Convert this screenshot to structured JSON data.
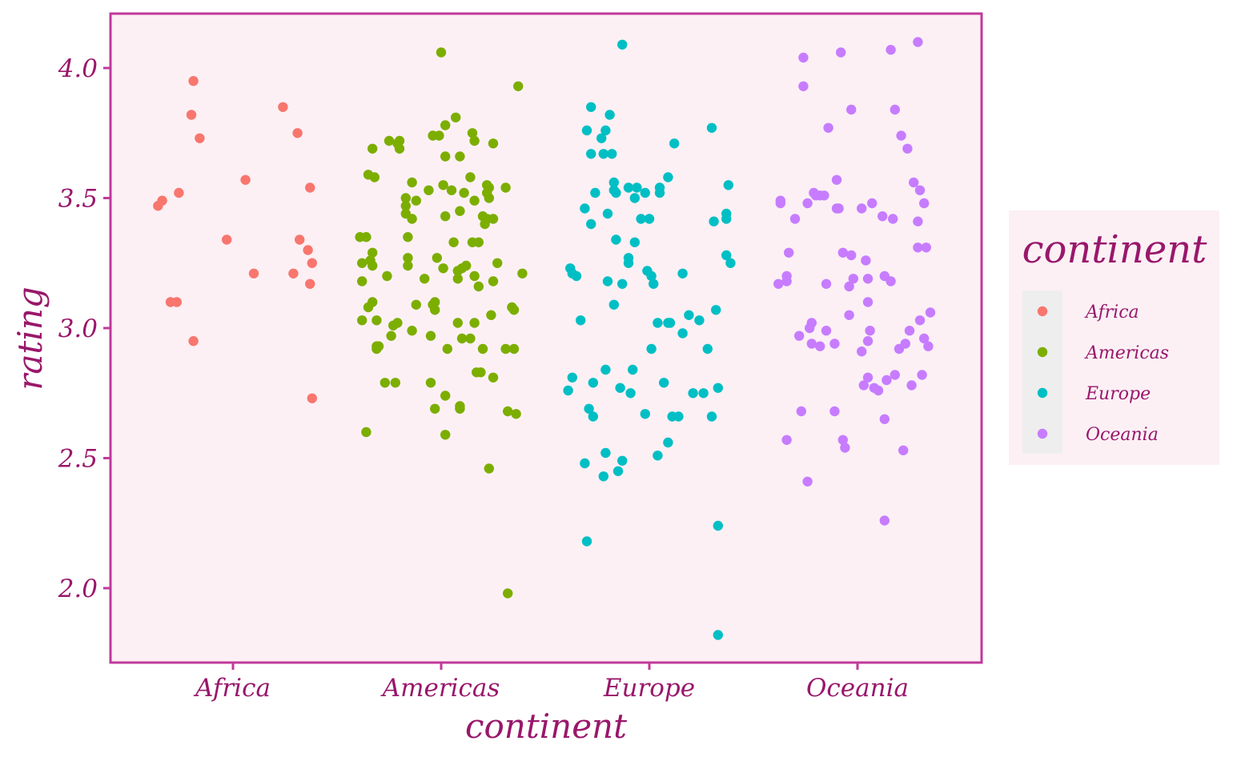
{
  "chart_data": {
    "type": "scatter",
    "xlabel": "continent",
    "ylabel": "rating",
    "categories": [
      "Africa",
      "Americas",
      "Europe",
      "Oceania"
    ],
    "ylim": [
      1.72,
      4.22
    ],
    "yticks": [
      "2.0",
      "2.5",
      "3.0",
      "3.5",
      "4.0"
    ],
    "ytick_values": [
      2.0,
      2.5,
      3.0,
      3.5,
      4.0
    ],
    "grid": false,
    "legend": {
      "title": "continent",
      "position": "right"
    },
    "colors": {
      "panel_background": "#fcf0f5",
      "panel_border": "#c0399b",
      "text": "#99176b",
      "legend_key_background": "#eeeeee"
    },
    "series": [
      {
        "name": "Africa",
        "color": "#f8766d",
        "points": [
          [
            -0.36,
            3.47
          ],
          [
            -0.34,
            3.49
          ],
          [
            -0.3,
            3.1
          ],
          [
            -0.27,
            3.1
          ],
          [
            -0.26,
            3.52
          ],
          [
            -0.2,
            3.82
          ],
          [
            -0.19,
            2.95
          ],
          [
            -0.19,
            3.95
          ],
          [
            -0.16,
            3.73
          ],
          [
            -0.03,
            3.34
          ],
          [
            0.06,
            3.57
          ],
          [
            0.1,
            3.21
          ],
          [
            0.24,
            3.85
          ],
          [
            0.29,
            3.21
          ],
          [
            0.31,
            3.75
          ],
          [
            0.32,
            3.34
          ],
          [
            0.36,
            3.3
          ],
          [
            0.37,
            3.54
          ],
          [
            0.37,
            3.17
          ],
          [
            0.38,
            3.25
          ],
          [
            0.38,
            2.73
          ]
        ]
      },
      {
        "name": "Americas",
        "color": "#7cae00",
        "points": [
          [
            -0.39,
            3.35
          ],
          [
            -0.38,
            3.25
          ],
          [
            -0.38,
            3.18
          ],
          [
            -0.38,
            3.03
          ],
          [
            -0.36,
            3.35
          ],
          [
            -0.36,
            2.6
          ],
          [
            -0.35,
            3.59
          ],
          [
            -0.35,
            3.08
          ],
          [
            -0.34,
            3.26
          ],
          [
            -0.33,
            3.24
          ],
          [
            -0.33,
            3.29
          ],
          [
            -0.33,
            3.1
          ],
          [
            -0.33,
            3.69
          ],
          [
            -0.32,
            3.58
          ],
          [
            -0.31,
            2.93
          ],
          [
            -0.31,
            2.92
          ],
          [
            -0.31,
            3.03
          ],
          [
            -0.3,
            2.93
          ],
          [
            -0.27,
            2.79
          ],
          [
            -0.26,
            3.2
          ],
          [
            -0.25,
            3.72
          ],
          [
            -0.24,
            2.97
          ],
          [
            -0.23,
            3.01
          ],
          [
            -0.22,
            2.79
          ],
          [
            -0.21,
            3.71
          ],
          [
            -0.21,
            3.02
          ],
          [
            -0.2,
            3.72
          ],
          [
            -0.2,
            3.69
          ],
          [
            -0.17,
            3.44
          ],
          [
            -0.17,
            3.47
          ],
          [
            -0.17,
            3.5
          ],
          [
            -0.16,
            3.35
          ],
          [
            -0.16,
            3.27
          ],
          [
            -0.16,
            3.24
          ],
          [
            -0.14,
            3.42
          ],
          [
            -0.14,
            3.56
          ],
          [
            -0.14,
            2.99
          ],
          [
            -0.12,
            3.09
          ],
          [
            -0.12,
            3.49
          ],
          [
            -0.08,
            3.19
          ],
          [
            -0.06,
            3.53
          ],
          [
            -0.05,
            2.79
          ],
          [
            -0.05,
            2.97
          ],
          [
            -0.04,
            3.74
          ],
          [
            -0.04,
            3.09
          ],
          [
            -0.03,
            3.1
          ],
          [
            -0.03,
            3.07
          ],
          [
            -0.03,
            2.69
          ],
          [
            -0.02,
            3.27
          ],
          [
            -0.01,
            3.74
          ],
          [
            0.0,
            4.06
          ],
          [
            0.01,
            3.55
          ],
          [
            0.01,
            3.23
          ],
          [
            0.02,
            3.43
          ],
          [
            0.02,
            3.66
          ],
          [
            0.02,
            3.78
          ],
          [
            0.02,
            2.74
          ],
          [
            0.02,
            2.59
          ],
          [
            0.03,
            2.92
          ],
          [
            0.05,
            3.53
          ],
          [
            0.06,
            3.33
          ],
          [
            0.07,
            3.81
          ],
          [
            0.08,
            3.19
          ],
          [
            0.08,
            3.02
          ],
          [
            0.08,
            3.22
          ],
          [
            0.09,
            2.69
          ],
          [
            0.09,
            2.7
          ],
          [
            0.09,
            3.66
          ],
          [
            0.09,
            3.45
          ],
          [
            0.1,
            3.23
          ],
          [
            0.1,
            2.96
          ],
          [
            0.11,
            3.52
          ],
          [
            0.12,
            3.24
          ],
          [
            0.14,
            3.58
          ],
          [
            0.14,
            2.96
          ],
          [
            0.15,
            3.33
          ],
          [
            0.15,
            3.75
          ],
          [
            0.16,
            3.49
          ],
          [
            0.16,
            3.2
          ],
          [
            0.16,
            3.02
          ],
          [
            0.16,
            3.72
          ],
          [
            0.17,
            2.83
          ],
          [
            0.18,
            3.33
          ],
          [
            0.18,
            3.16
          ],
          [
            0.19,
            2.83
          ],
          [
            0.2,
            2.92
          ],
          [
            0.2,
            3.43
          ],
          [
            0.21,
            3.4
          ],
          [
            0.22,
            3.55
          ],
          [
            0.22,
            3.42
          ],
          [
            0.22,
            3.52
          ],
          [
            0.23,
            3.5
          ],
          [
            0.23,
            3.54
          ],
          [
            0.23,
            2.46
          ],
          [
            0.24,
            3.05
          ],
          [
            0.25,
            2.81
          ],
          [
            0.25,
            3.42
          ],
          [
            0.25,
            3.18
          ],
          [
            0.25,
            3.71
          ],
          [
            0.27,
            3.25
          ],
          [
            0.31,
            3.54
          ],
          [
            0.31,
            2.92
          ],
          [
            0.32,
            2.68
          ],
          [
            0.32,
            1.98
          ],
          [
            0.34,
            3.08
          ],
          [
            0.35,
            3.07
          ],
          [
            0.35,
            2.92
          ],
          [
            0.36,
            2.67
          ],
          [
            0.37,
            3.93
          ],
          [
            0.39,
            3.21
          ]
        ]
      },
      {
        "name": "Europe",
        "color": "#00bfc4",
        "points": [
          [
            -0.39,
            2.76
          ],
          [
            -0.38,
            3.23
          ],
          [
            -0.37,
            2.81
          ],
          [
            -0.37,
            3.21
          ],
          [
            -0.35,
            3.2
          ],
          [
            -0.33,
            3.03
          ],
          [
            -0.31,
            3.46
          ],
          [
            -0.31,
            2.48
          ],
          [
            -0.3,
            3.76
          ],
          [
            -0.3,
            2.18
          ],
          [
            -0.29,
            2.69
          ],
          [
            -0.28,
            3.85
          ],
          [
            -0.28,
            3.67
          ],
          [
            -0.28,
            3.4
          ],
          [
            -0.27,
            2.66
          ],
          [
            -0.27,
            2.79
          ],
          [
            -0.26,
            3.52
          ],
          [
            -0.23,
            3.73
          ],
          [
            -0.22,
            3.67
          ],
          [
            -0.22,
            2.43
          ],
          [
            -0.21,
            3.76
          ],
          [
            -0.21,
            2.84
          ],
          [
            -0.21,
            2.52
          ],
          [
            -0.2,
            3.18
          ],
          [
            -0.2,
            3.44
          ],
          [
            -0.19,
            3.82
          ],
          [
            -0.18,
            3.67
          ],
          [
            -0.17,
            3.56
          ],
          [
            -0.17,
            3.53
          ],
          [
            -0.17,
            3.09
          ],
          [
            -0.16,
            3.34
          ],
          [
            -0.16,
            3.52
          ],
          [
            -0.15,
            2.45
          ],
          [
            -0.14,
            2.77
          ],
          [
            -0.13,
            2.49
          ],
          [
            -0.13,
            3.17
          ],
          [
            -0.13,
            4.09
          ],
          [
            -0.1,
            3.25
          ],
          [
            -0.1,
            3.27
          ],
          [
            -0.1,
            3.54
          ],
          [
            -0.09,
            2.75
          ],
          [
            -0.08,
            2.84
          ],
          [
            -0.07,
            3.5
          ],
          [
            -0.07,
            3.33
          ],
          [
            -0.06,
            3.54
          ],
          [
            -0.04,
            3.42
          ],
          [
            -0.02,
            3.52
          ],
          [
            -0.02,
            2.67
          ],
          [
            -0.01,
            3.22
          ],
          [
            0.0,
            3.42
          ],
          [
            0.01,
            3.2
          ],
          [
            0.01,
            2.92
          ],
          [
            0.02,
            3.17
          ],
          [
            0.04,
            3.02
          ],
          [
            0.04,
            2.51
          ],
          [
            0.05,
            3.54
          ],
          [
            0.05,
            3.52
          ],
          [
            0.07,
            2.79
          ],
          [
            0.09,
            2.56
          ],
          [
            0.09,
            3.58
          ],
          [
            0.09,
            3.02
          ],
          [
            0.1,
            3.02
          ],
          [
            0.11,
            2.66
          ],
          [
            0.12,
            3.71
          ],
          [
            0.14,
            2.66
          ],
          [
            0.16,
            3.21
          ],
          [
            0.16,
            2.98
          ],
          [
            0.19,
            3.05
          ],
          [
            0.21,
            2.75
          ],
          [
            0.24,
            3.03
          ],
          [
            0.26,
            2.75
          ],
          [
            0.28,
            2.92
          ],
          [
            0.3,
            2.66
          ],
          [
            0.3,
            3.77
          ],
          [
            0.31,
            3.41
          ],
          [
            0.32,
            3.07
          ],
          [
            0.33,
            2.77
          ],
          [
            0.33,
            1.82
          ],
          [
            0.33,
            2.24
          ],
          [
            0.37,
            3.28
          ],
          [
            0.37,
            3.42
          ],
          [
            0.37,
            3.44
          ],
          [
            0.38,
            3.55
          ],
          [
            0.39,
            3.25
          ]
        ]
      },
      {
        "name": "Oceania",
        "color": "#c77cff",
        "points": [
          [
            -0.38,
            3.17
          ],
          [
            -0.37,
            3.48
          ],
          [
            -0.37,
            3.49
          ],
          [
            -0.34,
            2.57
          ],
          [
            -0.34,
            3.2
          ],
          [
            -0.34,
            3.18
          ],
          [
            -0.33,
            3.29
          ],
          [
            -0.3,
            3.42
          ],
          [
            -0.28,
            2.97
          ],
          [
            -0.27,
            2.68
          ],
          [
            -0.26,
            3.93
          ],
          [
            -0.26,
            4.04
          ],
          [
            -0.24,
            2.41
          ],
          [
            -0.24,
            3.48
          ],
          [
            -0.23,
            3.0
          ],
          [
            -0.22,
            2.94
          ],
          [
            -0.22,
            3.02
          ],
          [
            -0.21,
            3.52
          ],
          [
            -0.2,
            3.51
          ],
          [
            -0.18,
            3.51
          ],
          [
            -0.18,
            2.93
          ],
          [
            -0.16,
            3.51
          ],
          [
            -0.15,
            3.17
          ],
          [
            -0.15,
            2.99
          ],
          [
            -0.14,
            3.77
          ],
          [
            -0.11,
            2.94
          ],
          [
            -0.11,
            2.68
          ],
          [
            -0.1,
            3.57
          ],
          [
            -0.1,
            3.46
          ],
          [
            -0.09,
            3.46
          ],
          [
            -0.08,
            4.06
          ],
          [
            -0.07,
            3.29
          ],
          [
            -0.07,
            2.57
          ],
          [
            -0.06,
            2.54
          ],
          [
            -0.04,
            3.16
          ],
          [
            -0.04,
            3.05
          ],
          [
            -0.03,
            3.28
          ],
          [
            -0.03,
            3.84
          ],
          [
            -0.02,
            3.19
          ],
          [
            0.02,
            2.91
          ],
          [
            0.02,
            3.46
          ],
          [
            0.03,
            2.78
          ],
          [
            0.04,
            3.26
          ],
          [
            0.05,
            3.1
          ],
          [
            0.05,
            2.81
          ],
          [
            0.05,
            3.19
          ],
          [
            0.05,
            2.95
          ],
          [
            0.06,
            2.99
          ],
          [
            0.07,
            3.48
          ],
          [
            0.08,
            2.77
          ],
          [
            0.1,
            2.76
          ],
          [
            0.12,
            3.43
          ],
          [
            0.13,
            2.26
          ],
          [
            0.13,
            2.65
          ],
          [
            0.13,
            3.2
          ],
          [
            0.14,
            2.8
          ],
          [
            0.16,
            3.18
          ],
          [
            0.16,
            4.07
          ],
          [
            0.17,
            3.42
          ],
          [
            0.18,
            2.82
          ],
          [
            0.18,
            3.84
          ],
          [
            0.2,
            2.92
          ],
          [
            0.21,
            3.74
          ],
          [
            0.22,
            2.53
          ],
          [
            0.23,
            2.94
          ],
          [
            0.24,
            3.69
          ],
          [
            0.25,
            2.99
          ],
          [
            0.26,
            2.78
          ],
          [
            0.27,
            3.56
          ],
          [
            0.29,
            3.41
          ],
          [
            0.29,
            3.31
          ],
          [
            0.3,
            3.53
          ],
          [
            0.3,
            3.03
          ],
          [
            0.31,
            2.82
          ],
          [
            0.32,
            2.96
          ],
          [
            0.32,
            3.48
          ],
          [
            0.33,
            3.31
          ],
          [
            0.34,
            2.93
          ],
          [
            0.35,
            3.06
          ],
          [
            0.29,
            4.1
          ]
        ]
      }
    ]
  }
}
